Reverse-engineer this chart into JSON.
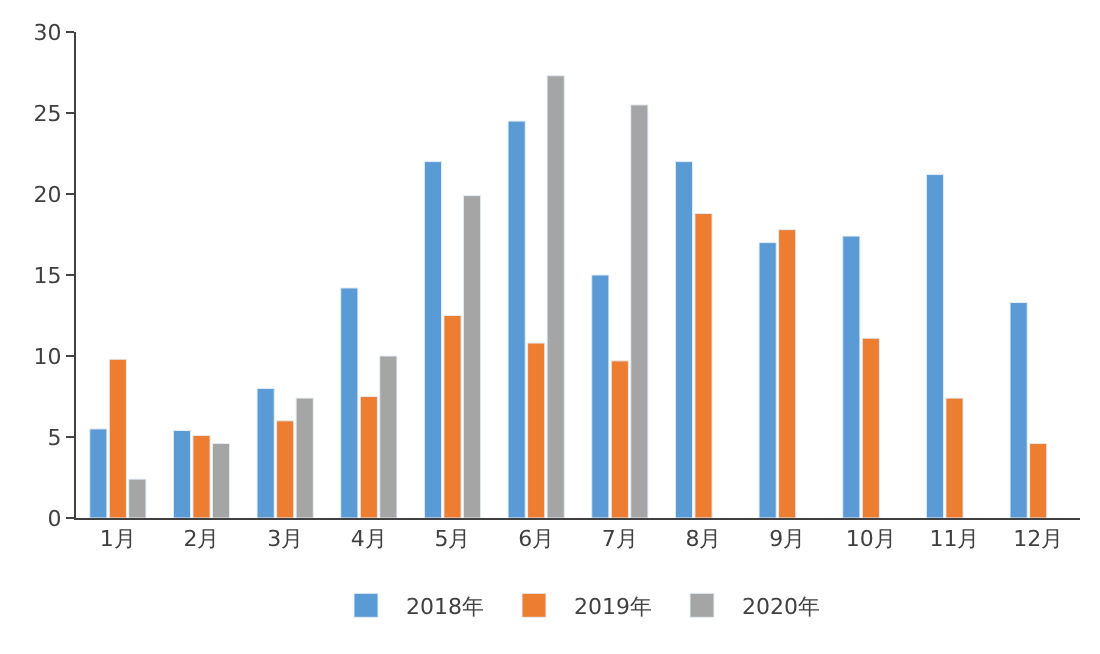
{
  "chart_data": {
    "type": "bar",
    "categories": [
      "1月",
      "2月",
      "3月",
      "4月",
      "5月",
      "6月",
      "7月",
      "8月",
      "9月",
      "10月",
      "11月",
      "12月"
    ],
    "series": [
      {
        "name": "2018年",
        "color": "#5b9bd5",
        "values": [
          5.5,
          5.4,
          8,
          14.2,
          22,
          24.5,
          15,
          22,
          17,
          17.4,
          21.2,
          13.3
        ]
      },
      {
        "name": "2019年",
        "color": "#ed7d31",
        "values": [
          9.8,
          5.1,
          6,
          7.5,
          12.5,
          10.8,
          9.7,
          18.8,
          17.8,
          11.1,
          7.4,
          4.6
        ]
      },
      {
        "name": "2020年",
        "color": "#a5a5a5",
        "values": [
          2.4,
          4.6,
          7.4,
          10,
          19.9,
          27.3,
          25.5,
          null,
          null,
          null,
          null,
          null
        ]
      }
    ],
    "ylim": [
      0,
      30
    ],
    "yticks": [
      0,
      5,
      10,
      15,
      20,
      25,
      30
    ],
    "legend": "bottom"
  }
}
